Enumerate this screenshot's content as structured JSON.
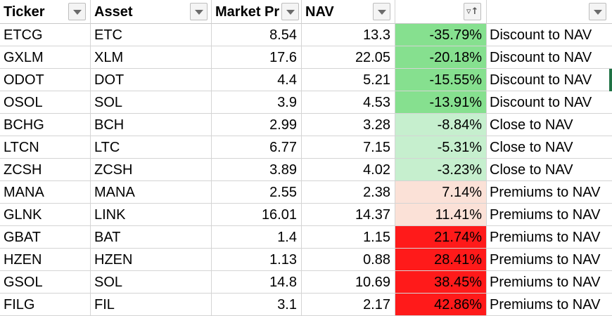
{
  "header": {
    "ticker": "Ticker",
    "asset": "Asset",
    "market_price": "Market Pr",
    "nav": "NAV",
    "pct": "",
    "category": ""
  },
  "filter_icons": {
    "default": "chevron-down-icon",
    "sorted": "sort-ascending-filter-icon"
  },
  "colors": {
    "green_strong": "#86e08f",
    "green_light": "#c6efce",
    "peach": "#fbe1d7",
    "red": "#ff1a1a",
    "selection": "#217346"
  },
  "rows": [
    {
      "ticker": "ETCG",
      "asset": "ETC",
      "market_price": "8.54",
      "nav": "13.3",
      "pct": "-35.79%",
      "category": "Discount to NAV",
      "fill": "green_strong"
    },
    {
      "ticker": "GXLM",
      "asset": "XLM",
      "market_price": "17.6",
      "nav": "22.05",
      "pct": "-20.18%",
      "category": "Discount to NAV",
      "fill": "green_strong"
    },
    {
      "ticker": "ODOT",
      "asset": "DOT",
      "market_price": "4.4",
      "nav": "5.21",
      "pct": "-15.55%",
      "category": "Discount to NAV",
      "fill": "green_strong"
    },
    {
      "ticker": "OSOL",
      "asset": "SOL",
      "market_price": "3.9",
      "nav": "4.53",
      "pct": "-13.91%",
      "category": "Discount to NAV",
      "fill": "green_strong"
    },
    {
      "ticker": "BCHG",
      "asset": "BCH",
      "market_price": "2.99",
      "nav": "3.28",
      "pct": "-8.84%",
      "category": "Close to NAV",
      "fill": "green_light"
    },
    {
      "ticker": "LTCN",
      "asset": "LTC",
      "market_price": "6.77",
      "nav": "7.15",
      "pct": "-5.31%",
      "category": "Close to NAV",
      "fill": "green_light"
    },
    {
      "ticker": "ZCSH",
      "asset": "ZCSH",
      "market_price": "3.89",
      "nav": "4.02",
      "pct": "-3.23%",
      "category": "Close to NAV",
      "fill": "green_light"
    },
    {
      "ticker": "MANA",
      "asset": "MANA",
      "market_price": "2.55",
      "nav": "2.38",
      "pct": "7.14%",
      "category": "Premiums to NAV",
      "fill": "peach"
    },
    {
      "ticker": "GLNK",
      "asset": "LINK",
      "market_price": "16.01",
      "nav": "14.37",
      "pct": "11.41%",
      "category": "Premiums to NAV",
      "fill": "peach"
    },
    {
      "ticker": "GBAT",
      "asset": "BAT",
      "market_price": "1.4",
      "nav": "1.15",
      "pct": "21.74%",
      "category": "Premiums to NAV",
      "fill": "red"
    },
    {
      "ticker": "HZEN",
      "asset": "HZEN",
      "market_price": "1.13",
      "nav": "0.88",
      "pct": "28.41%",
      "category": "Premiums to NAV",
      "fill": "red"
    },
    {
      "ticker": "GSOL",
      "asset": "SOL",
      "market_price": "14.8",
      "nav": "10.69",
      "pct": "38.45%",
      "category": "Premiums to NAV",
      "fill": "red"
    },
    {
      "ticker": "FILG",
      "asset": "FIL",
      "market_price": "3.1",
      "nav": "2.17",
      "pct": "42.86%",
      "category": "Premiums to NAV",
      "fill": "red"
    }
  ]
}
